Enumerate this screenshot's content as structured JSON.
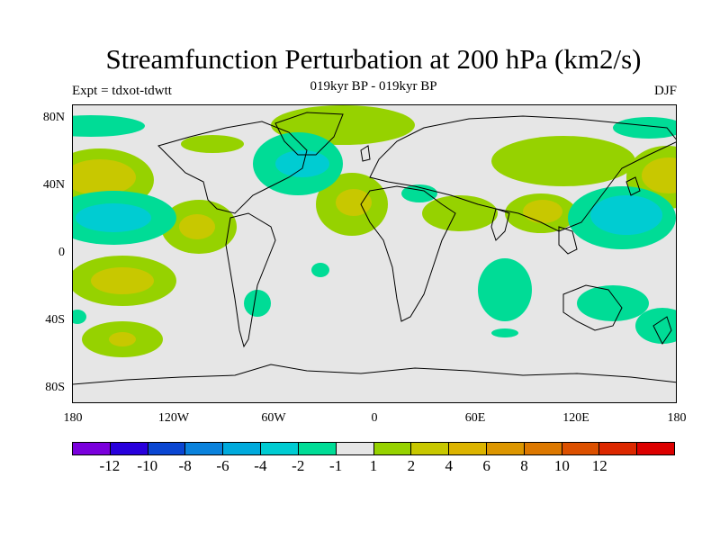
{
  "title": "Streamfunction Perturbation at 200 hPa (km2/s)",
  "subtitle": "019kyr BP - 019kyr BP",
  "left_label": "Expt = tdxot-tdwtt",
  "right_label": "DJF",
  "map": {
    "ocean_land_color": "#e6e6e6",
    "lat_labels": [
      "80N",
      "40N",
      "0",
      "40S",
      "80S"
    ],
    "lon_labels": [
      "180",
      "120W",
      "60W",
      "0",
      "60E",
      "120E",
      "180"
    ]
  },
  "colorbar": {
    "colors": [
      "#7a00dc",
      "#2800dc",
      "#0a46d2",
      "#0a82dc",
      "#00aadc",
      "#00ccd2",
      "#00dc96",
      "#e6e6e6",
      "#96d200",
      "#c8c800",
      "#dcb400",
      "#dc9600",
      "#dc7800",
      "#dc5000",
      "#dc2800",
      "#dc0000"
    ],
    "labels": [
      "-12",
      "-10",
      "-8",
      "-6",
      "-4",
      "-2",
      "-1",
      "1",
      "2",
      "4",
      "6",
      "8",
      "10",
      "12"
    ]
  }
}
